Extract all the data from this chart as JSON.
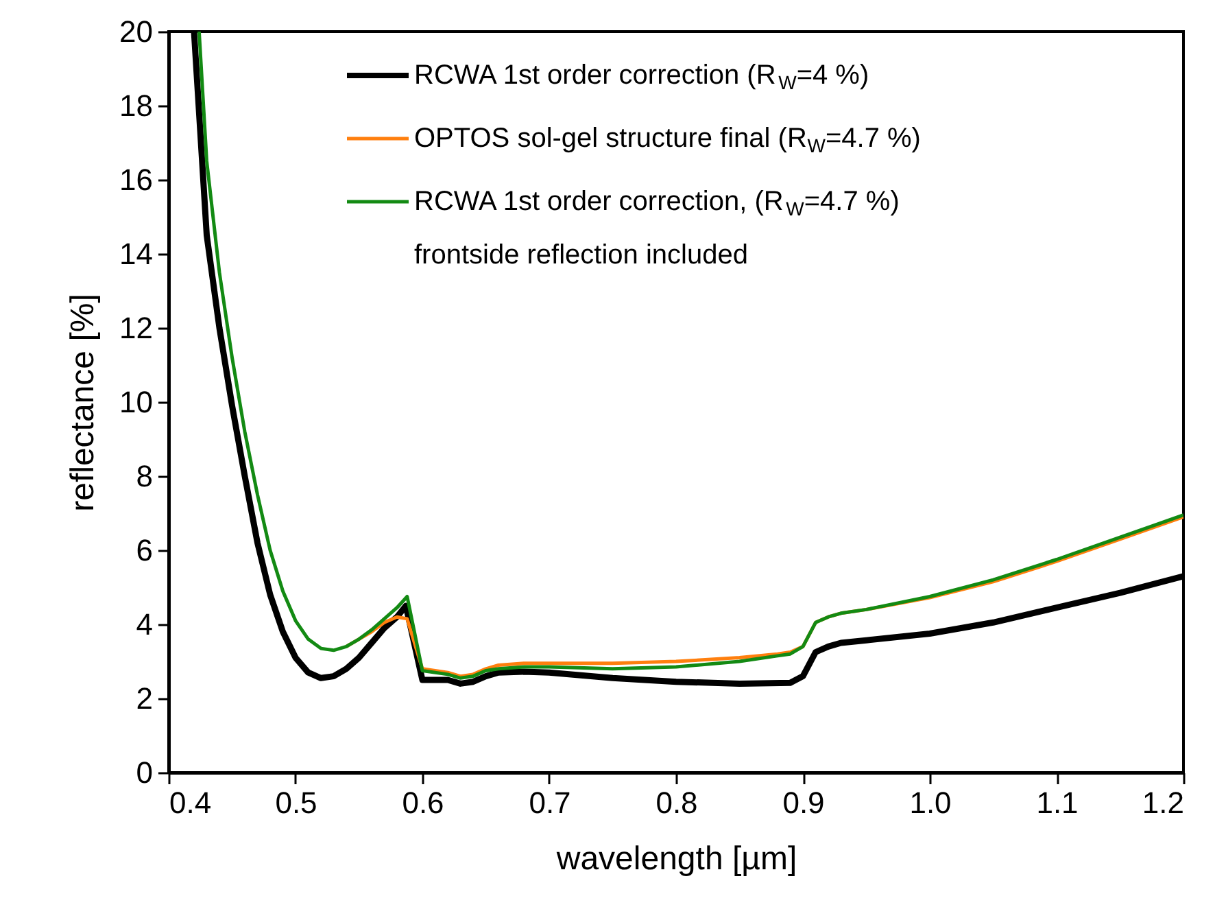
{
  "chart_data": {
    "type": "line",
    "xlabel": "wavelength [µm]",
    "ylabel": "reflectance [%]",
    "xlim": [
      0.4,
      1.2
    ],
    "xticks": [
      0.4,
      0.5,
      0.6,
      0.7,
      0.8,
      0.9,
      {
        "value": 1.0,
        "label": "1.0"
      },
      1.1,
      1.2
    ],
    "ylim": [
      0,
      20
    ],
    "yticks": [
      0,
      2,
      4,
      6,
      8,
      10,
      12,
      14,
      16,
      18,
      20
    ],
    "grid": false,
    "legend": "top",
    "marker": "none",
    "line_style": "solid",
    "series": [
      {
        "name": "RCWA 1st order correction (R$_{W}$=4 %)",
        "color": "#000000",
        "x": [
          0.42,
          0.43,
          0.44,
          0.45,
          0.46,
          0.47,
          0.48,
          0.49,
          0.5,
          0.51,
          0.52,
          0.53,
          0.54,
          0.55,
          0.56,
          0.57,
          0.58,
          0.587,
          0.6,
          0.62,
          0.63,
          0.64,
          0.65,
          0.66,
          0.68,
          0.7,
          0.75,
          0.8,
          0.85,
          0.89,
          0.9,
          0.91,
          0.92,
          0.93,
          0.95,
          1.0,
          1.05,
          1.1,
          1.15,
          1.2
        ],
        "values": [
          20,
          14.5,
          12,
          9.9,
          8,
          6.2,
          4.8,
          3.8,
          3.1,
          2.7,
          2.55,
          2.6,
          2.8,
          3.1,
          3.5,
          3.9,
          4.2,
          4.5,
          2.5,
          2.5,
          2.4,
          2.45,
          2.6,
          2.7,
          2.72,
          2.7,
          2.55,
          2.45,
          2.4,
          2.42,
          2.6,
          3.25,
          3.4,
          3.5,
          3.57,
          3.75,
          4.05,
          4.45,
          4.85,
          5.3
        ]
      },
      {
        "name": "OPTOS sol-gel structure final  (R$_{W}$=4.7 %)",
        "color": "#ff7f0e",
        "x": [
          0.54,
          0.55,
          0.56,
          0.57,
          0.58,
          0.588,
          0.6,
          0.62,
          0.63,
          0.64,
          0.65,
          0.66,
          0.68,
          0.7,
          0.75,
          0.8,
          0.85,
          0.88,
          0.89,
          0.9,
          0.91,
          0.92,
          0.93,
          0.95,
          1.0,
          1.05,
          1.1,
          1.15,
          1.2
        ],
        "values": [
          3.4,
          3.6,
          3.8,
          4.05,
          4.2,
          4.15,
          2.8,
          2.7,
          2.6,
          2.65,
          2.8,
          2.9,
          2.95,
          2.95,
          2.95,
          3.0,
          3.1,
          3.2,
          3.25,
          3.4,
          4.05,
          4.2,
          4.3,
          4.4,
          4.72,
          5.15,
          5.7,
          6.3,
          6.9
        ]
      },
      {
        "name": "RCWA 1st order correction, (R$_{W}$=4.7 %)\nfrontside reflection included",
        "color": "#138a13",
        "x": [
          0.424,
          0.43,
          0.44,
          0.45,
          0.46,
          0.47,
          0.48,
          0.49,
          0.5,
          0.51,
          0.52,
          0.53,
          0.54,
          0.55,
          0.56,
          0.57,
          0.58,
          0.588,
          0.6,
          0.62,
          0.63,
          0.64,
          0.65,
          0.66,
          0.68,
          0.7,
          0.75,
          0.8,
          0.85,
          0.88,
          0.89,
          0.9,
          0.91,
          0.92,
          0.93,
          0.95,
          1.0,
          1.05,
          1.1,
          1.15,
          1.2
        ],
        "values": [
          20,
          16.5,
          13.5,
          11.2,
          9.2,
          7.5,
          6.0,
          4.9,
          4.1,
          3.6,
          3.35,
          3.3,
          3.4,
          3.6,
          3.85,
          4.15,
          4.45,
          4.75,
          2.75,
          2.65,
          2.55,
          2.6,
          2.75,
          2.8,
          2.85,
          2.85,
          2.8,
          2.85,
          3.0,
          3.15,
          3.2,
          3.4,
          4.05,
          4.2,
          4.3,
          4.4,
          4.75,
          5.2,
          5.75,
          6.35,
          6.95
        ]
      }
    ]
  }
}
